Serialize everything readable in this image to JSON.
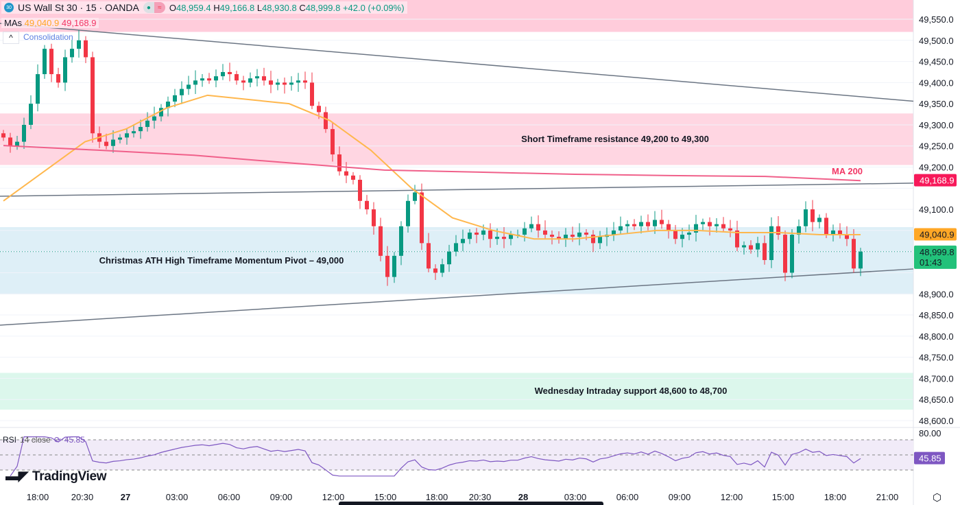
{
  "header": {
    "symbol_badge": "30",
    "title": "US Wall St 30 · 15 · OANDA",
    "open_label": "O",
    "open": "48,959.4",
    "high_label": "H",
    "high": "49,166.8",
    "low_label": "L",
    "low": "48,930.8",
    "close_label": "C",
    "close": "48,999.8",
    "change": "+42.0 (+0.09%)"
  },
  "mas": {
    "label": "MAs",
    "ma50": "49,040.9",
    "ma200": "49,168.9",
    "hidden_text": "Consolidation"
  },
  "rsi": {
    "label": "RSI",
    "params": "14 close",
    "value": "45.85"
  },
  "brand": "TradingView",
  "colors": {
    "up": "#089981",
    "down": "#f23645",
    "ma50": "#ffb74d",
    "ma200": "#f0608a",
    "rsi": "#7e57c2",
    "zone_res": "#ffd6e2",
    "zone_pivot": "#deeff7",
    "zone_sup": "#dcf7ec",
    "trend": "#6b7583"
  },
  "chart_data": {
    "type": "candlestick",
    "price_axis": {
      "range": [
        48575,
        49600
      ],
      "ticks": [
        "49,550.0",
        "49,500.0",
        "49,450.0",
        "49,400.0",
        "49,350.0",
        "49,300.0",
        "49,250.0",
        "49,200.0",
        "49,150.0",
        "49,100.0",
        "49,050.0",
        "49,000.0",
        "48,950.0",
        "48,900.0",
        "48,850.0",
        "48,800.0",
        "48,750.0",
        "48,700.0",
        "48,650.0",
        "48,600.0"
      ]
    },
    "time_axis": [
      "18:00",
      "20:30",
      "27",
      "03:00",
      "06:00",
      "09:00",
      "12:00",
      "15:00",
      "18:00",
      "20:30",
      "28",
      "03:00",
      "06:00",
      "09:00",
      "12:00",
      "15:00",
      "18:00",
      "21:00"
    ],
    "closes": [
      49270,
      49250,
      49260,
      49300,
      49350,
      49420,
      49480,
      49420,
      49400,
      49460,
      49480,
      49500,
      49460,
      49280,
      49260,
      49250,
      49265,
      49270,
      49280,
      49285,
      49295,
      49310,
      49320,
      49340,
      49355,
      49370,
      49385,
      49395,
      49405,
      49410,
      49405,
      49415,
      49425,
      49420,
      49405,
      49400,
      49410,
      49415,
      49405,
      49395,
      49400,
      49395,
      49400,
      49405,
      49400,
      49345,
      49330,
      49290,
      49230,
      49190,
      49180,
      49170,
      49120,
      49100,
      49060,
      48990,
      48940,
      48990,
      49060,
      49120,
      49140,
      49020,
      48960,
      48950,
      48970,
      49000,
      49020,
      49030,
      49045,
      49040,
      49050,
      49030,
      49035,
      49030,
      49040,
      49040,
      49055,
      49065,
      49050,
      49040,
      49035,
      49030,
      49040,
      49035,
      49045,
      49040,
      49020,
      49035,
      49040,
      49050,
      49060,
      49065,
      49060,
      49070,
      49060,
      49075,
      49065,
      49050,
      49030,
      49040,
      49045,
      49065,
      49070,
      49060,
      49065,
      49055,
      49050,
      49010,
      49015,
      49005,
      49020,
      48980,
      49060,
      49040,
      48950,
      49040,
      49060,
      49100,
      49070,
      49080,
      49040,
      49050,
      49040,
      49030,
      48960,
      49000
    ],
    "ma50": [
      49120,
      49190,
      49260,
      49290,
      49340,
      49370,
      49360,
      49350,
      49310,
      49240,
      49150,
      49080,
      49050,
      49030,
      49030,
      49040,
      49050,
      49050,
      49045,
      49045,
      49040,
      49040
    ],
    "ma200": [
      49251,
      49240,
      49228,
      49210,
      49193,
      49188,
      49183,
      49180,
      49178,
      49168
    ],
    "last_price": "48,999.8",
    "countdown": "01:43",
    "ma50_label": "49,040.9",
    "ma200_label": "49,168.9",
    "ma200_text": "MA 200",
    "zones": [
      {
        "label": "",
        "from": 49520,
        "to": 49600,
        "color": "#ffccdb"
      },
      {
        "label": "Short Timeframe resistance 49,200 to 49,300",
        "from": 49205,
        "to": 49327,
        "color": "#ffd6e2"
      },
      {
        "label": "Christmas ATH High Timeframe Momentum Pivot – 49,000",
        "from": 48899,
        "to": 49058,
        "color": "#deeff7"
      },
      {
        "label": "Wednesday Intraday support 48,600 to 48,700",
        "from": 48626,
        "to": 48713,
        "color": "#dcf7ec"
      }
    ],
    "trendlines": [
      [
        49540,
        49356
      ],
      [
        49131,
        49162
      ],
      [
        48826,
        48959
      ]
    ],
    "rsi_axis": {
      "ticks": [
        "80.00"
      ],
      "bands": [
        70,
        50,
        30
      ]
    },
    "rsi_value": "45.85"
  }
}
